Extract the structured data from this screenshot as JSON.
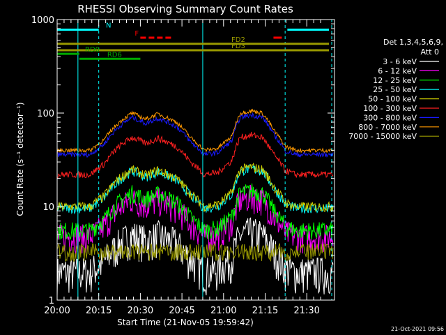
{
  "chart_data": {
    "type": "line",
    "title": "RHESSI Observing Summary Count Rates",
    "ylabel": "Count Rate (s⁻¹ detector⁻¹)",
    "xlabel": "Start Time (21-Nov-05 19:59:42)",
    "yscale": "log",
    "ylim": [
      1,
      1000
    ],
    "xlim": [
      0,
      100
    ],
    "x_ticks": [
      {
        "t": 0,
        "label": "20:00"
      },
      {
        "t": 15,
        "label": "20:15"
      },
      {
        "t": 30,
        "label": "20:30"
      },
      {
        "t": 45,
        "label": "20:45"
      },
      {
        "t": 60,
        "label": "21:00"
      },
      {
        "t": 75,
        "label": "21:15"
      },
      {
        "t": 90,
        "label": "21:30"
      }
    ],
    "y_ticks": [
      {
        "v": 1,
        "label": "1"
      },
      {
        "v": 10,
        "label": "10"
      },
      {
        "v": 100,
        "label": "100"
      },
      {
        "v": 1000,
        "label": "1000"
      }
    ],
    "legend_header": [
      "Det 1,3,4,5,6,9,",
      "Att 0"
    ],
    "legend_position": "right",
    "timestamp": "21-Oct-2021 09:56",
    "background": "#000000",
    "series": [
      {
        "name": "3 - 6 keV",
        "color": "#ffffff"
      },
      {
        "name": "6 - 12 keV",
        "color": "#ff00ff"
      },
      {
        "name": "12 - 25 keV",
        "color": "#00ff00"
      },
      {
        "name": "25 - 50 keV",
        "color": "#00ffff"
      },
      {
        "name": "50 - 100 keV",
        "color": "#cccc00"
      },
      {
        "name": "100 - 300 keV",
        "color": "#ff2020"
      },
      {
        "name": "300 - 800 keV",
        "color": "#1a1aff"
      },
      {
        "name": "800 - 7000 keV",
        "color": "#ff9900"
      },
      {
        "name": "7000 - 15000 keV",
        "color": "#999900"
      }
    ],
    "background_level": {
      "t": [
        0,
        12,
        17,
        22,
        27,
        32,
        36.4,
        43,
        48,
        53,
        58,
        63,
        66,
        70,
        74,
        78,
        82.2,
        86,
        90,
        95
      ],
      "v": [
        40,
        40,
        52,
        78,
        100,
        86,
        98,
        80,
        55,
        40,
        42,
        56,
        100,
        106,
        100,
        66,
        44,
        40,
        40,
        40
      ]
    },
    "indicator_bars": [
      {
        "label": "N",
        "color": "#00ffff",
        "start": 0,
        "end": 15,
        "value": 780
      },
      {
        "label": "",
        "color": "#00ffff",
        "start": 83,
        "end": 98,
        "value": 780
      },
      {
        "label": "F",
        "color": "#ff0000",
        "start": 30,
        "end": 42,
        "value": 640,
        "dashed": true
      },
      {
        "label": "",
        "color": "#ff0000",
        "start": 78,
        "end": 81,
        "value": 640
      },
      {
        "label": "FD2",
        "color": "#999900",
        "start": 0,
        "end": 98,
        "value": 550
      },
      {
        "label": "FD3",
        "color": "#999900",
        "start": 0,
        "end": 98,
        "value": 470
      },
      {
        "label": "RD0",
        "color": "#00aa00",
        "start": 0,
        "end": 8,
        "value": 430
      },
      {
        "label": "RD6",
        "color": "#00aa00",
        "start": 8,
        "end": 30,
        "value": 380
      }
    ],
    "vertical_markers": {
      "solid": [
        7.5,
        52.5
      ],
      "dashed": [
        15,
        82.2,
        99
      ]
    }
  }
}
